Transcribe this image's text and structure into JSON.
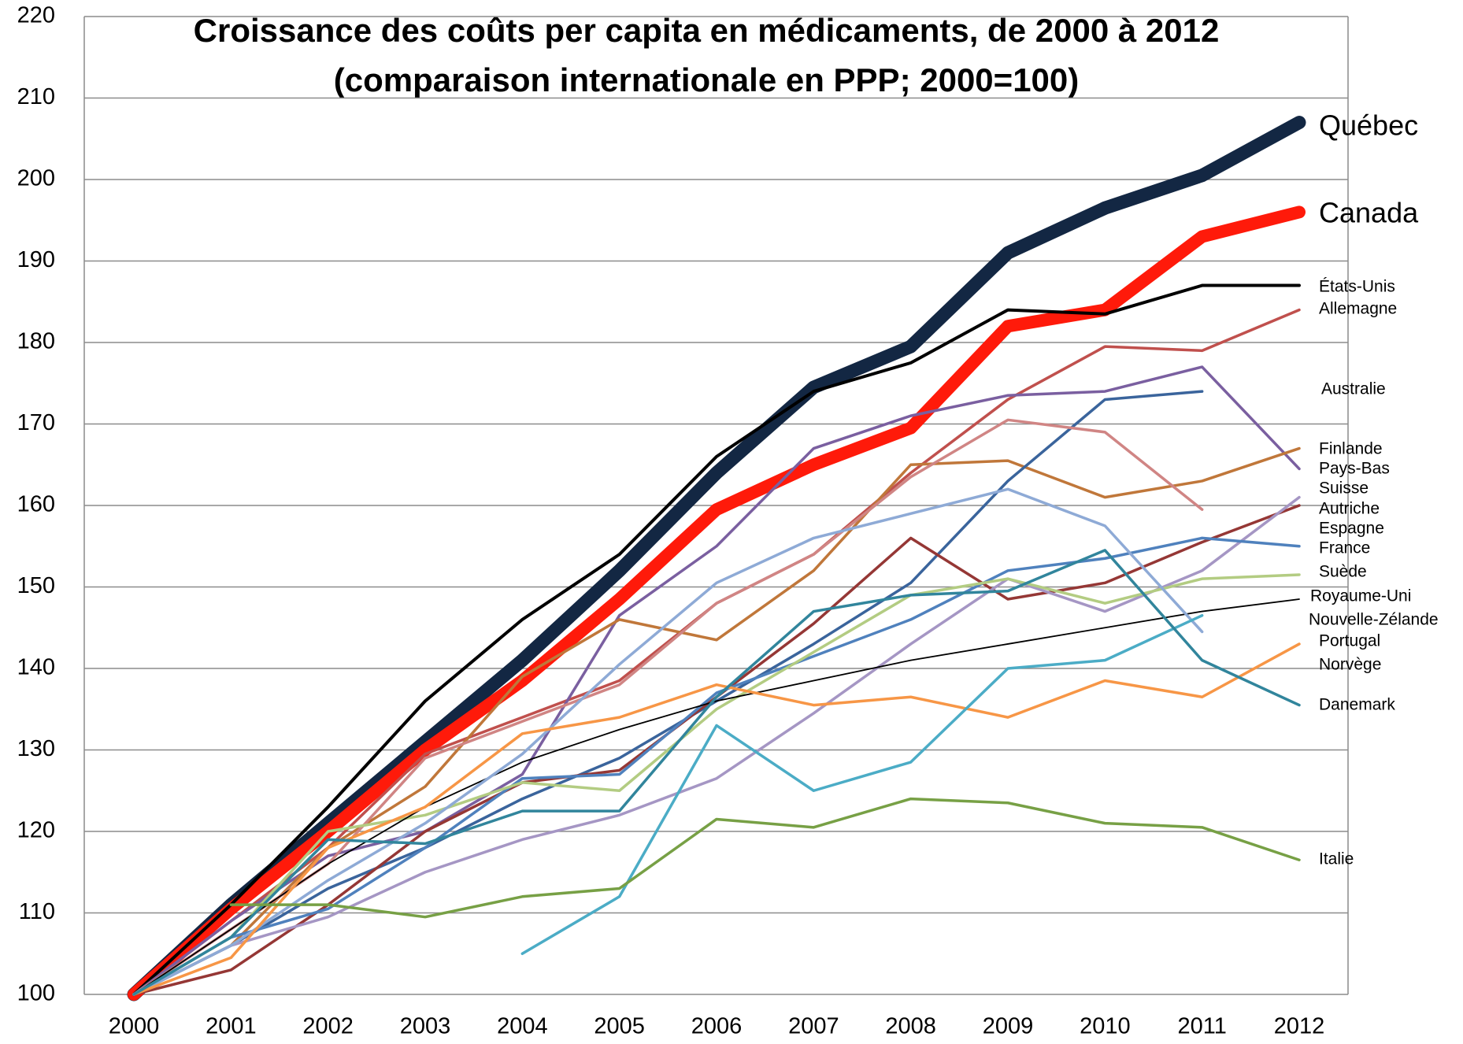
{
  "chart_data": {
    "type": "line",
    "title": [
      "Croissance des coûts per capita en médicaments, de 2000 à 2012",
      "(comparaison internationale en PPP; 2000=100)"
    ],
    "categories": [
      "2000",
      "2001",
      "2002",
      "2003",
      "2004",
      "2005",
      "2006",
      "2007",
      "2008",
      "2009",
      "2010",
      "2011",
      "2012"
    ],
    "ylim": [
      100,
      220
    ],
    "yticks": [
      100,
      110,
      120,
      130,
      140,
      150,
      160,
      170,
      180,
      190,
      200,
      210,
      220
    ],
    "grid": true,
    "series": [
      {
        "name": "Québec",
        "color": "#132743",
        "values": [
          100,
          111,
          121,
          131,
          141,
          152,
          164,
          174.5,
          179.5,
          191,
          196.5,
          200.5,
          207
        ]
      },
      {
        "name": "Canada",
        "color": "#ff1a0a",
        "values": [
          100,
          110.5,
          120,
          130,
          138.5,
          148.5,
          159.5,
          165,
          169.5,
          182,
          184,
          193,
          196
        ]
      },
      {
        "name": "États-Unis",
        "color": "#000000",
        "values": [
          100,
          111,
          123,
          136,
          146,
          154,
          166,
          174,
          177.5,
          184,
          183.5,
          187,
          187
        ]
      },
      {
        "name": "Allemagne",
        "color": "#c0504d",
        "values": [
          100,
          109,
          118,
          129.5,
          134,
          138.5,
          148,
          154,
          164,
          173,
          179.5,
          179,
          184
        ]
      },
      {
        "name": "Australie",
        "color": "#7a5fa0",
        "values": [
          100,
          109,
          117,
          120,
          127,
          146.5,
          155,
          167,
          171,
          173.5,
          174,
          177,
          164.5
        ]
      },
      {
        "name": "Finlande",
        "color": "#c0773a",
        "values": [
          100,
          106,
          118,
          125.5,
          139,
          146,
          143.5,
          152,
          165,
          165.5,
          161,
          163,
          167
        ]
      },
      {
        "name": "Pays-Bas",
        "color": "#3a649c",
        "values": [
          100,
          106,
          113,
          118,
          124,
          129,
          136,
          143,
          150.5,
          163,
          173,
          174,
          null
        ]
      },
      {
        "name": "Suisse",
        "color": "#d08584",
        "values": [
          100,
          108,
          116,
          129,
          133.5,
          138,
          148,
          154,
          163.5,
          170.5,
          169,
          159.5,
          null
        ]
      },
      {
        "name": "Autriche",
        "color": "#953735",
        "values": [
          100,
          103,
          111,
          120,
          126,
          127.5,
          136.5,
          145.5,
          156,
          148.5,
          150.5,
          155.5,
          160
        ]
      },
      {
        "name": "Espagne",
        "color": "#a596c4",
        "values": [
          100,
          106,
          109.5,
          115,
          119,
          122,
          126.5,
          134.5,
          143,
          151,
          147,
          152,
          161
        ]
      },
      {
        "name": "France",
        "color": "#4f81bd",
        "values": [
          100,
          107,
          110.5,
          118,
          126.5,
          127,
          137,
          141.5,
          146,
          152,
          153.5,
          156,
          155
        ]
      },
      {
        "name": "Suède",
        "color": "#b3cc82",
        "values": [
          100,
          107,
          120,
          122,
          126,
          125,
          135,
          142,
          149,
          151,
          148,
          151,
          151.5
        ]
      },
      {
        "name": "Royaume-Uni",
        "color": "#000000",
        "values": [
          100,
          108,
          116,
          123,
          128.5,
          132.5,
          136,
          138.5,
          141,
          143,
          145,
          147,
          148.5
        ]
      },
      {
        "name": "Nouvelle-Zélande",
        "color": "#8eaad6",
        "values": [
          100,
          106,
          114,
          121,
          129.5,
          140.5,
          150.5,
          156,
          159,
          162,
          157.5,
          144.5,
          null
        ]
      },
      {
        "name": "Portugal",
        "color": "#f79646",
        "values": [
          100,
          104.5,
          118,
          123,
          132,
          134,
          138,
          135.5,
          136.5,
          134,
          138.5,
          136.5,
          143
        ]
      },
      {
        "name": "Norvège",
        "color": "#4bacc6",
        "values": [
          null,
          null,
          null,
          null,
          105,
          112,
          133,
          125,
          128.5,
          140,
          141,
          146.5,
          null
        ]
      },
      {
        "name": "Danemark",
        "color": "#31859c",
        "values": [
          100,
          107,
          119,
          118.5,
          122.5,
          122.5,
          136.5,
          147,
          149,
          149.5,
          154.5,
          141,
          135.5
        ]
      },
      {
        "name": "Italie",
        "color": "#77a045",
        "values": [
          null,
          111,
          111,
          109.5,
          112,
          113,
          121.5,
          120.5,
          124,
          123.5,
          121,
          120.5,
          116.5
        ]
      }
    ]
  }
}
